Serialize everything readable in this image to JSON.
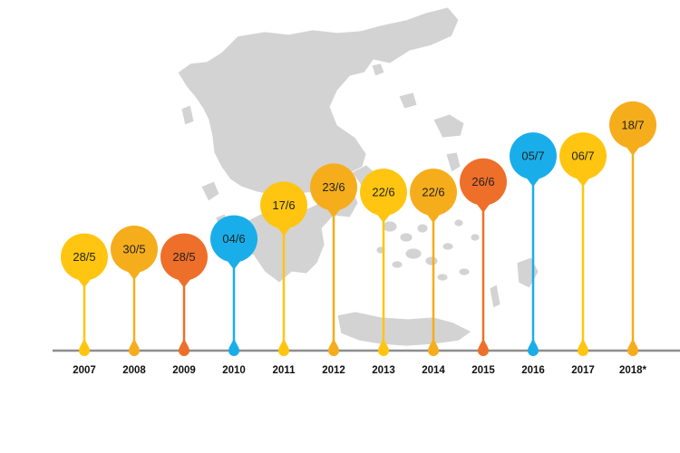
{
  "colors": {
    "yellow": "#FFC510",
    "amber": "#F6AD1C",
    "orange": "#EE6F2A",
    "blue": "#19AEEA",
    "map": "#D3D3D3",
    "baseline": "#8E8E8E"
  },
  "chart_data": {
    "type": "timeline",
    "title": "",
    "xlabel": "",
    "ylabel": "",
    "background": "map of Greece (light gray)",
    "categories": [
      "2007",
      "2008",
      "2009",
      "2010",
      "2011",
      "2012",
      "2013",
      "2014",
      "2015",
      "2016",
      "2017",
      "2018*"
    ],
    "values": [
      "28/5",
      "30/5",
      "28/5",
      "04/6",
      "17/6",
      "23/6",
      "22/6",
      "22/6",
      "26/6",
      "05/7",
      "06/7",
      "18/7"
    ],
    "day_of_year": [
      148,
      151,
      148,
      155,
      168,
      175,
      173,
      173,
      177,
      187,
      187,
      199
    ],
    "marker_colors": [
      "yellow",
      "amber",
      "orange",
      "blue",
      "yellow",
      "amber",
      "yellow",
      "amber",
      "orange",
      "blue",
      "yellow",
      "amber"
    ],
    "ylim": [
      130,
      200
    ]
  }
}
